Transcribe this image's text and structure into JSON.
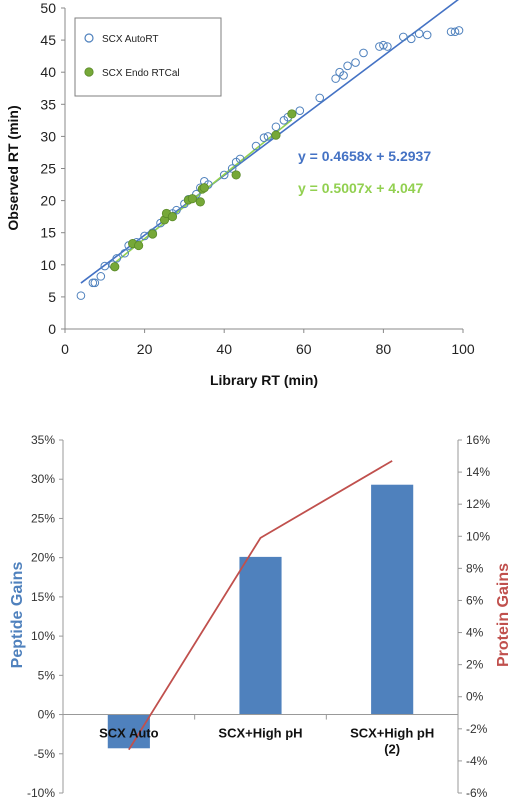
{
  "chart_data": [
    {
      "type": "scatter",
      "xlabel": "Library RT (min)",
      "ylabel": "Observed RT (min)",
      "xlim": [
        0,
        100
      ],
      "ylim": [
        0,
        50
      ],
      "xticks": [
        "0",
        "20",
        "40",
        "60",
        "80",
        "100"
      ],
      "yticks": [
        "0",
        "5",
        "10",
        "15",
        "20",
        "25",
        "30",
        "35",
        "40",
        "45",
        "50"
      ],
      "grid": false,
      "legend_position": "top-left",
      "series": [
        {
          "name": "SCX AutoRT",
          "marker": "open-circle",
          "color": "#4f81bd",
          "points": [
            [
              4,
              5.2
            ],
            [
              7,
              7.2
            ],
            [
              7.5,
              7.2
            ],
            [
              9,
              8.2
            ],
            [
              10,
              9.8
            ],
            [
              12,
              10
            ],
            [
              13,
              11
            ],
            [
              15,
              11.8
            ],
            [
              16,
              13
            ],
            [
              18,
              13.5
            ],
            [
              20,
              14.5
            ],
            [
              22,
              15
            ],
            [
              24,
              16.5
            ],
            [
              25,
              17
            ],
            [
              27,
              18
            ],
            [
              28,
              18.5
            ],
            [
              30,
              19.5
            ],
            [
              31,
              20.2
            ],
            [
              33,
              21
            ],
            [
              34,
              22
            ],
            [
              35,
              23
            ],
            [
              36,
              22.5
            ],
            [
              40,
              24
            ],
            [
              42,
              25
            ],
            [
              43,
              26
            ],
            [
              44,
              26.5
            ],
            [
              48,
              28.5
            ],
            [
              50,
              29.8
            ],
            [
              51,
              30
            ],
            [
              53,
              31.5
            ],
            [
              55,
              32.5
            ],
            [
              56,
              33
            ],
            [
              59,
              34
            ],
            [
              64,
              36
            ],
            [
              68,
              39
            ],
            [
              69,
              40
            ],
            [
              70,
              39.5
            ],
            [
              71,
              41
            ],
            [
              73,
              41.5
            ],
            [
              75,
              43
            ],
            [
              79,
              44
            ],
            [
              80,
              44.2
            ],
            [
              81,
              44
            ],
            [
              85,
              45.5
            ],
            [
              87,
              45.2
            ],
            [
              89,
              46
            ],
            [
              91,
              45.8
            ],
            [
              97,
              46.3
            ],
            [
              98,
              46.3
            ],
            [
              99,
              46.5
            ]
          ]
        },
        {
          "name": "SCX Endo RTCal",
          "marker": "filled-circle",
          "color": "#76a838",
          "points": [
            [
              12.5,
              9.7
            ],
            [
              17,
              13.3
            ],
            [
              18.5,
              13
            ],
            [
              22,
              14.8
            ],
            [
              25,
              17
            ],
            [
              25.5,
              18
            ],
            [
              27,
              17.5
            ],
            [
              31,
              20.1
            ],
            [
              32,
              20.3
            ],
            [
              34,
              19.8
            ],
            [
              34.5,
              21.8
            ],
            [
              35,
              22
            ],
            [
              43,
              24
            ],
            [
              53,
              30.2
            ],
            [
              57,
              33.5
            ]
          ]
        }
      ],
      "trendlines": [
        {
          "series": "SCX AutoRT",
          "color": "#4472c4",
          "slope": 0.4658,
          "intercept": 5.2937,
          "x_range": [
            4,
            99
          ],
          "label": "y = 0.4658x + 5.2937"
        },
        {
          "series": "SCX Endo RTCal",
          "color": "#92d050",
          "slope": 0.5007,
          "intercept": 4.047,
          "x_range": [
            12,
            57
          ],
          "label": "y = 0.5007x + 4.047"
        }
      ]
    },
    {
      "type": "bar",
      "categories": [
        "SCX Auto",
        "SCX+High pH",
        "SCX+High pH\n(2)"
      ],
      "grid": false,
      "series": [
        {
          "name": "Peptide Gains",
          "axis": "left",
          "kind": "bar",
          "color": "#4f81bd",
          "values": [
            -4.3,
            20.1,
            29.3
          ]
        },
        {
          "name": "Protein Gains",
          "axis": "right",
          "kind": "line",
          "color": "#c0504d",
          "values": [
            -3.3,
            9.9,
            14.7
          ]
        }
      ],
      "ylabel_left": "Peptide Gains",
      "ylabel_right": "Protein Gains",
      "ylabel_left_color": "#4f81bd",
      "ylabel_right_color": "#c0504d",
      "ylim_left": [
        -10,
        35
      ],
      "ylim_right": [
        -6,
        16
      ],
      "yticks_left": [
        "-10%",
        "-5%",
        "0%",
        "5%",
        "10%",
        "15%",
        "20%",
        "25%",
        "30%",
        "35%"
      ],
      "yticks_right": [
        "-6%",
        "-4%",
        "-2%",
        "0%",
        "2%",
        "4%",
        "6%",
        "8%",
        "10%",
        "12%",
        "14%",
        "16%"
      ]
    }
  ]
}
